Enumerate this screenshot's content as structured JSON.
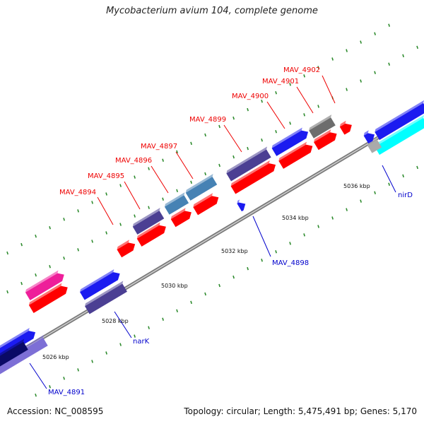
{
  "title": "Mycobacterium avium 104, complete genome",
  "footer": {
    "accession": "Accession: NC_008595",
    "summary": "Topology: circular; Length: 5,475,491 bp; Genes: 5,170"
  },
  "colors": {
    "backbone": "#8c8c8c",
    "tick": "#2e8b2e",
    "label_red": "#ee0000",
    "label_blue": "#0000cc"
  },
  "scale_labels": [
    "5026 kbp",
    "5028 kbp",
    "5030 kbp",
    "5032 kbp",
    "5034 kbp",
    "5036 kbp"
  ],
  "gene_labels_red": [
    "MAV_4894",
    "MAV_4895",
    "MAV_4896",
    "MAV_4897",
    "MAV_4899",
    "MAV_4900",
    "MAV_4901",
    "MAV_4902"
  ],
  "gene_labels_blue": [
    "MAV_4898",
    "nirD",
    "narK",
    "MAV_4891"
  ]
}
